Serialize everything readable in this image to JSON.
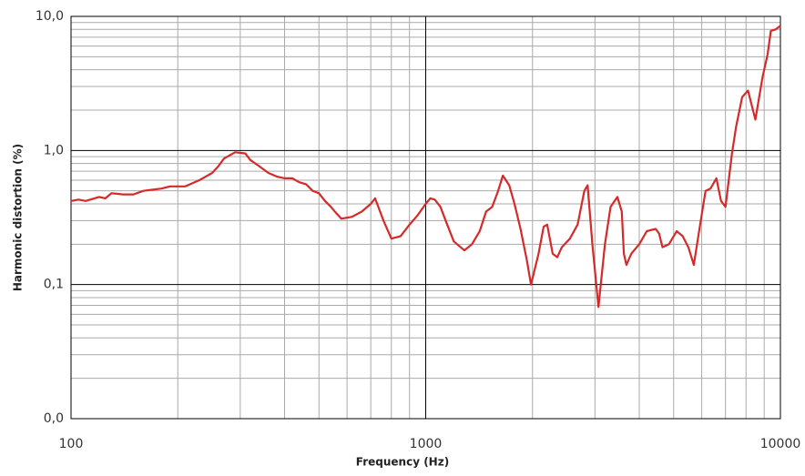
{
  "chart_data": {
    "type": "line",
    "xlabel": "Frequency (Hz)",
    "ylabel": "Harmonic distortion  (%)",
    "xscale": "log",
    "yscale": "log",
    "grid": true,
    "minor_grid": true,
    "xlim": [
      100,
      10000
    ],
    "xticks": [
      100,
      1000,
      10000
    ],
    "ylim": [
      0.01,
      10
    ],
    "yticks": [
      {
        "value": 0.01,
        "label": "0,0"
      },
      {
        "value": 0.1,
        "label": "0,1"
      },
      {
        "value": 1,
        "label": "1,0"
      },
      {
        "value": 10,
        "label": "10,0"
      }
    ],
    "series": [
      {
        "color": "#d42a2a",
        "x": [
          100,
          105,
          110,
          120,
          125,
          130,
          140,
          150,
          160,
          170,
          180,
          190,
          200,
          210,
          220,
          230,
          240,
          250,
          260,
          270,
          280,
          290,
          300,
          310,
          320,
          340,
          360,
          380,
          400,
          420,
          440,
          460,
          480,
          500,
          520,
          540,
          560,
          578,
          620,
          660,
          700,
          720,
          760,
          800,
          850,
          900,
          950,
          1000,
          1030,
          1060,
          1100,
          1150,
          1200,
          1285,
          1350,
          1420,
          1480,
          1540,
          1600,
          1650,
          1720,
          1780,
          1850,
          1930,
          1980,
          2080,
          2150,
          2200,
          2280,
          2350,
          2420,
          2550,
          2680,
          2800,
          2860,
          2950,
          3070,
          3200,
          3320,
          3470,
          3570,
          3620,
          3680,
          3800,
          4000,
          4200,
          4450,
          4550,
          4650,
          4850,
          5100,
          5300,
          5500,
          5700,
          5900,
          6150,
          6350,
          6600,
          6800,
          7000,
          7300,
          7500,
          7800,
          8100,
          8500,
          8900,
          9200,
          9400,
          9700,
          10000
        ],
        "values": [
          0.42,
          0.43,
          0.42,
          0.45,
          0.44,
          0.48,
          0.47,
          0.47,
          0.5,
          0.51,
          0.52,
          0.54,
          0.54,
          0.54,
          0.57,
          0.6,
          0.64,
          0.68,
          0.76,
          0.87,
          0.92,
          0.97,
          0.96,
          0.95,
          0.85,
          0.76,
          0.68,
          0.64,
          0.62,
          0.62,
          0.58,
          0.56,
          0.5,
          0.48,
          0.42,
          0.38,
          0.34,
          0.31,
          0.32,
          0.35,
          0.4,
          0.44,
          0.3,
          0.22,
          0.23,
          0.28,
          0.33,
          0.4,
          0.44,
          0.43,
          0.38,
          0.28,
          0.21,
          0.18,
          0.2,
          0.25,
          0.35,
          0.38,
          0.5,
          0.65,
          0.55,
          0.4,
          0.26,
          0.15,
          0.1,
          0.17,
          0.27,
          0.28,
          0.17,
          0.16,
          0.19,
          0.22,
          0.28,
          0.5,
          0.55,
          0.2,
          0.068,
          0.2,
          0.38,
          0.45,
          0.35,
          0.17,
          0.14,
          0.17,
          0.2,
          0.25,
          0.26,
          0.24,
          0.19,
          0.2,
          0.25,
          0.23,
          0.19,
          0.14,
          0.25,
          0.5,
          0.52,
          0.62,
          0.42,
          0.38,
          0.95,
          1.5,
          2.5,
          2.8,
          1.7,
          3.5,
          5.2,
          7.8,
          8.0,
          8.5
        ]
      }
    ]
  }
}
